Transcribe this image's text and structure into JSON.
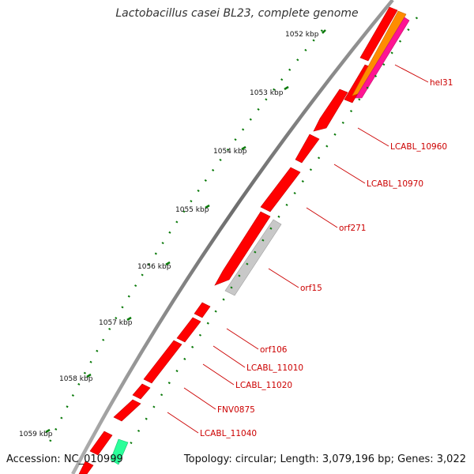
{
  "title": "Lactobacillus casei BL23, complete genome",
  "accession": "Accession: NC_010999",
  "topology": "Topology: circular; Length: 3,079,196 bp; Genes: 3,022",
  "scale_labels": [
    "1052 kbp",
    "1053 kbp",
    "1054 kbp",
    "1055 kbp",
    "1056 kbp",
    "1057 kbp",
    "1058 kbp",
    "1059 kbp"
  ],
  "genes": [
    {
      "label": "hel31",
      "color": "#ff0000"
    },
    {
      "label": "LCABL_10960",
      "color": "#ff0000"
    },
    {
      "label": "LCABL_10970",
      "color": "#ff0000"
    },
    {
      "label": "orf271",
      "color": "#ff0000"
    },
    {
      "label": "orf15",
      "color": "#ff0000"
    },
    {
      "label": "orf106",
      "color": "#ff0000"
    },
    {
      "label": "LCABL_11010",
      "color": "#ff0000"
    },
    {
      "label": "LCABL_11020",
      "color": "#ff0000"
    },
    {
      "label": "FNV0875",
      "color": "#ff0000"
    },
    {
      "label": "LCABL_11040",
      "color": "#ff0000"
    }
  ],
  "colors": {
    "backbone": "#8a8a8a",
    "gene_forward": "#ff0000",
    "pseudogene": "#c8c8c8",
    "feature_orange": "#ff8c00",
    "feature_magenta": "#ff1493",
    "feature_green": "#2aff9a",
    "dots": "#0a7a0a",
    "label_text": "#cc0000"
  }
}
